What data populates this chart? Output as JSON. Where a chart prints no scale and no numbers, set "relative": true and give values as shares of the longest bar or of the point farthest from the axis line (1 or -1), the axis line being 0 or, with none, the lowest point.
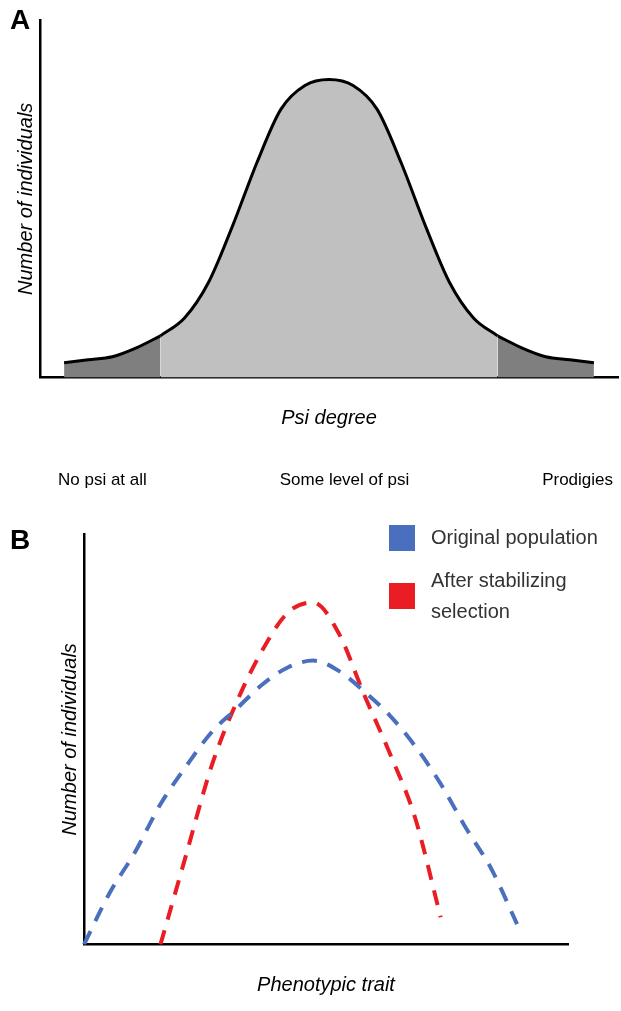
{
  "chart_data": [
    {
      "type": "area",
      "title": "A",
      "xlabel": "Psi degree",
      "ylabel": "Number of individuals",
      "relative": true,
      "categories": [
        null,
        null,
        null,
        null,
        null,
        null,
        null,
        null,
        null,
        null,
        null,
        null,
        null,
        null,
        null,
        null,
        null,
        null,
        null,
        null,
        null,
        null,
        null,
        null,
        null
      ],
      "series": [
        {
          "color": "#7f7f7f",
          "values": [
            null,
            0.05,
            0.06,
            0.07,
            0.1,
            0.14,
            null,
            null,
            null,
            null,
            null,
            null,
            null,
            null,
            null,
            null,
            null,
            null,
            null,
            null,
            null,
            null,
            null,
            null,
            null
          ]
        },
        {
          "color": "#c0c0c0",
          "values": [
            null,
            null,
            null,
            null,
            null,
            0.14,
            0.2,
            0.32,
            0.51,
            0.72,
            0.9,
            0.98,
            1,
            0.98,
            0.9,
            0.72,
            0.51,
            0.32,
            0.2,
            0.14,
            null,
            null,
            null,
            null,
            null
          ]
        },
        {
          "color": "#7f7f7f",
          "values": [
            null,
            null,
            null,
            null,
            null,
            null,
            null,
            null,
            null,
            null,
            null,
            null,
            null,
            null,
            null,
            null,
            null,
            null,
            null,
            0.14,
            0.1,
            0.07,
            0.06,
            0.05,
            null
          ]
        }
      ],
      "annotations": [
        "No psi at all",
        "Some level of psi",
        "Prodigies"
      ]
    },
    {
      "type": "line",
      "title": "B",
      "xlabel": "Phenotypic trait",
      "ylabel": "Number of individuals",
      "relative": true,
      "legend": "top right",
      "marker": "none",
      "line_style": "dashed",
      "categories": [
        null,
        null,
        null,
        null,
        null,
        null,
        null,
        null,
        null,
        null,
        null,
        null,
        null,
        null,
        null,
        null,
        null,
        null,
        null,
        null
      ],
      "series": [
        {
          "name": "Original population",
          "color": "#4a6fbe",
          "values": [
            0,
            0.15,
            0.27,
            0.41,
            0.52,
            0.62,
            0.69,
            0.76,
            0.81,
            0.83,
            0.8,
            0.74,
            0.67,
            0.58,
            0.47,
            0.34,
            0.22,
            0.06,
            null,
            null
          ]
        },
        {
          "name": "After stabilizing selection",
          "color": "#ea1c24",
          "values": [
            null,
            null,
            null,
            0,
            0.26,
            0.52,
            0.71,
            0.86,
            0.97,
            1,
            0.91,
            0.73,
            0.56,
            0.37,
            0.08,
            null,
            null,
            null,
            null,
            null
          ]
        }
      ]
    }
  ]
}
